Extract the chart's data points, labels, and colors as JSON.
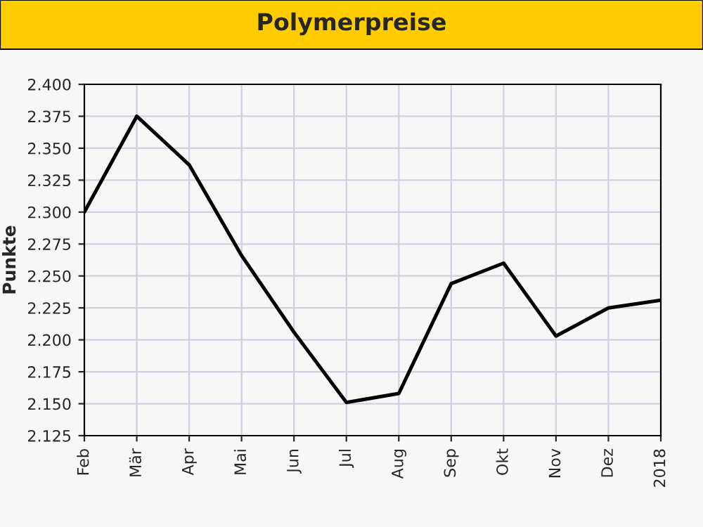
{
  "chart_data": {
    "type": "line",
    "title": "Polymerpreise",
    "ylabel": "Punkte",
    "categories": [
      "Feb",
      "Mär",
      "Apr",
      "Mai",
      "Jun",
      "Jul",
      "Aug",
      "Sep",
      "Okt",
      "Nov",
      "Dez",
      "2018"
    ],
    "series": [
      {
        "color": "#000000",
        "values": [
          2.3,
          2.375,
          2.337,
          2.266,
          2.206,
          2.151,
          2.158,
          2.244,
          2.26,
          2.203,
          2.225,
          2.231
        ]
      }
    ],
    "ylim": [
      2.125,
      2.4
    ],
    "yticks": [
      {
        "value": 2.125,
        "label": "2.125"
      },
      {
        "value": 2.15,
        "label": "2.150"
      },
      {
        "value": 2.175,
        "label": "2.175"
      },
      {
        "value": 2.2,
        "label": "2.200"
      },
      {
        "value": 2.225,
        "label": "2.225"
      },
      {
        "value": 2.25,
        "label": "2.250"
      },
      {
        "value": 2.275,
        "label": "2.275"
      },
      {
        "value": 2.3,
        "label": "2.300"
      },
      {
        "value": 2.325,
        "label": "2.325"
      },
      {
        "value": 2.35,
        "label": "2.350"
      },
      {
        "value": 2.375,
        "label": "2.375"
      },
      {
        "value": 2.4,
        "label": "2.400"
      }
    ],
    "grid": true,
    "line_style": "solid",
    "marker": "none"
  }
}
